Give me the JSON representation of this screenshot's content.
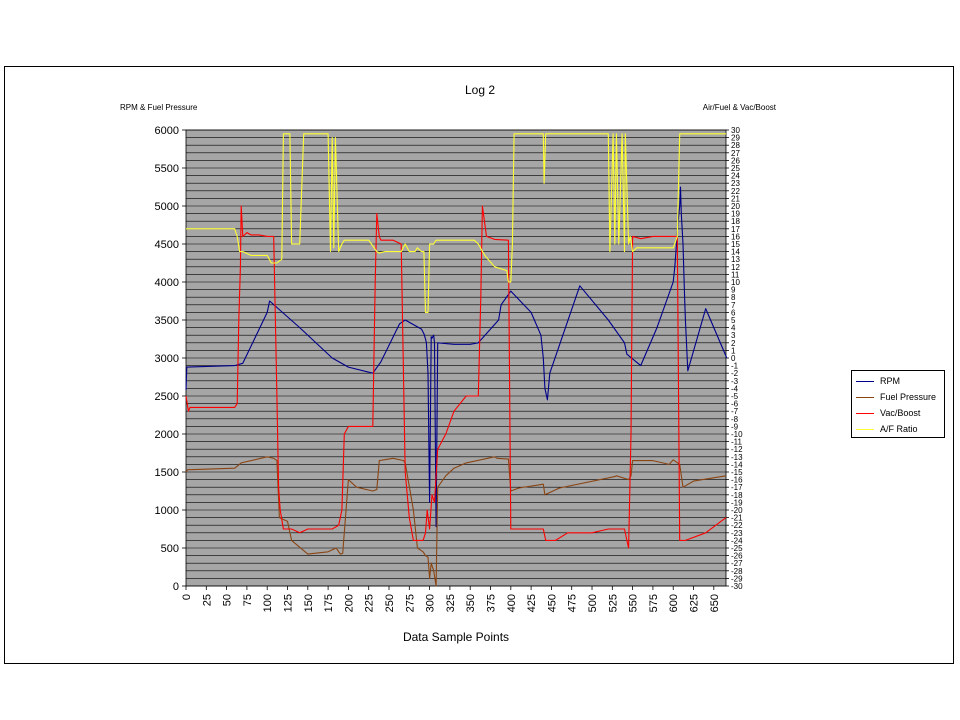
{
  "chart_data": {
    "type": "line",
    "title": "Log 2",
    "xlabel": "Data Sample Points",
    "ylabel_left": "RPM & Fuel Pressure",
    "ylabel_right": "Air/Fuel & Vac/Boost",
    "xlim": [
      0,
      665
    ],
    "ylim_left": [
      0,
      6000
    ],
    "ylim_right": [
      -30,
      30
    ],
    "x_ticks": [
      0,
      25,
      50,
      75,
      100,
      125,
      150,
      175,
      200,
      225,
      250,
      275,
      300,
      325,
      350,
      375,
      400,
      425,
      450,
      475,
      500,
      525,
      550,
      575,
      600,
      625,
      650
    ],
    "y_ticks_left": [
      0,
      500,
      1000,
      1500,
      2000,
      2500,
      3000,
      3500,
      4000,
      4500,
      5000,
      5500,
      6000
    ],
    "y_ticks_right": [
      30,
      29,
      28,
      27,
      26,
      25,
      24,
      23,
      22,
      21,
      20,
      19,
      18,
      17,
      16,
      15,
      14,
      13,
      12,
      11,
      10,
      9,
      8,
      7,
      6,
      5,
      4,
      3,
      2,
      1,
      0,
      -1,
      -2,
      -3,
      -4,
      -5,
      -6,
      -7,
      -8,
      -9,
      -10,
      -11,
      -12,
      -13,
      -14,
      -15,
      -16,
      -17,
      -18,
      -19,
      -20,
      -21,
      -22,
      -23,
      -24,
      -25,
      -26,
      -27,
      -28,
      -29,
      -30
    ],
    "grid": true,
    "legend_position": "right",
    "plot_background": "#a6a6a6",
    "series": [
      {
        "name": "RPM",
        "axis": "left",
        "color": "#00008b",
        "x": [
          0,
          1,
          2,
          60,
          70,
          100,
          103,
          140,
          180,
          200,
          230,
          240,
          263,
          270,
          290,
          293,
          295,
          296,
          298,
          300,
          302,
          303,
          305,
          306,
          308,
          310,
          330,
          350,
          360,
          385,
          388,
          400,
          425,
          437,
          440,
          442,
          445,
          448,
          485,
          520,
          540,
          543,
          560,
          580,
          600,
          602,
          604,
          606,
          608,
          609,
          610,
          612,
          614,
          615,
          618,
          640,
          666
        ],
        "y": [
          2580,
          2880,
          2880,
          2900,
          2930,
          3600,
          3750,
          3400,
          3000,
          2880,
          2800,
          2950,
          3450,
          3500,
          3380,
          3320,
          3250,
          3200,
          2800,
          1100,
          3280,
          3260,
          3300,
          3200,
          780,
          3200,
          3180,
          3180,
          3200,
          3500,
          3700,
          3880,
          3600,
          3300,
          3000,
          2600,
          2450,
          2800,
          3950,
          3500,
          3200,
          3050,
          2900,
          3400,
          4000,
          4200,
          4500,
          4800,
          5000,
          5250,
          4900,
          4500,
          3800,
          3500,
          2830,
          3650,
          3000
        ]
      },
      {
        "name": "Fuel Pressure",
        "axis": "left",
        "color": "#8b4513",
        "x": [
          0,
          2,
          5,
          60,
          68,
          100,
          108,
          112,
          115,
          125,
          130,
          150,
          175,
          185,
          190,
          193,
          200,
          210,
          230,
          235,
          238,
          255,
          268,
          270,
          280,
          285,
          292,
          295,
          298,
          300,
          302,
          305,
          308,
          310,
          320,
          330,
          345,
          380,
          383,
          397,
          400,
          410,
          440,
          442,
          460,
          528,
          530,
          545,
          548,
          550,
          575,
          595,
          600,
          608,
          612,
          625,
          665
        ],
        "y": [
          1500,
          1530,
          1530,
          1550,
          1620,
          1700,
          1680,
          1650,
          900,
          850,
          600,
          420,
          450,
          500,
          420,
          430,
          1400,
          1300,
          1250,
          1270,
          1650,
          1680,
          1650,
          1620,
          1000,
          500,
          450,
          400,
          380,
          100,
          300,
          200,
          0,
          1300,
          1450,
          1550,
          1620,
          1700,
          1680,
          1670,
          1250,
          1290,
          1340,
          1200,
          1290,
          1440,
          1450,
          1400,
          1450,
          1650,
          1650,
          1600,
          1660,
          1600,
          1300,
          1380,
          1450
        ]
      },
      {
        "name": "Vac/Boost",
        "axis": "right",
        "color": "#ff0000",
        "x": [
          0,
          3,
          5,
          60,
          63,
          65,
          67,
          68,
          70,
          75,
          80,
          90,
          100,
          108,
          112,
          114,
          116,
          120,
          130,
          140,
          150,
          180,
          188,
          192,
          195,
          200,
          215,
          225,
          230,
          233,
          235,
          238,
          240,
          255,
          265,
          270,
          275,
          280,
          285,
          292,
          295,
          297,
          300,
          303,
          306,
          310,
          320,
          330,
          345,
          360,
          363,
          365,
          370,
          380,
          397,
          400,
          405,
          420,
          440,
          443,
          455,
          470,
          500,
          520,
          540,
          543,
          545,
          548,
          550,
          560,
          575,
          590,
          605,
          608,
          610,
          615,
          640,
          665
        ],
        "y": [
          -5,
          -7,
          -6.5,
          -6.5,
          -6,
          5,
          12,
          20,
          16,
          16.5,
          16.2,
          16.2,
          16,
          16,
          -5,
          -17,
          -20,
          -22.5,
          -22.5,
          -23,
          -22.5,
          -22.5,
          -22,
          -20,
          -10,
          -9,
          -9,
          -9,
          -9,
          10,
          19,
          16,
          15.5,
          15.5,
          15,
          -15,
          -21,
          -24,
          -24,
          -24,
          -23,
          -20,
          -22.5,
          -18,
          -19,
          -12,
          -10,
          -7,
          -5,
          -5,
          8,
          20,
          16,
          15.6,
          15.5,
          -22.5,
          -22.5,
          -22.5,
          -22.5,
          -24,
          -24,
          -23,
          -23,
          -22.5,
          -22.5,
          -24,
          -25,
          -10,
          16,
          15.7,
          16,
          16,
          16,
          -24,
          -24,
          -24,
          -23,
          -21
        ]
      },
      {
        "name": "A/F Ratio",
        "axis": "right",
        "color": "#ffff33",
        "x": [
          0,
          5,
          60,
          63,
          66,
          70,
          80,
          100,
          105,
          112,
          118,
          120,
          125,
          128,
          130,
          140,
          145,
          150,
          175,
          178,
          180,
          182,
          184,
          188,
          190,
          192,
          195,
          210,
          225,
          235,
          238,
          245,
          255,
          265,
          270,
          275,
          282,
          285,
          290,
          293,
          295,
          298,
          300,
          305,
          308,
          311,
          355,
          360,
          368,
          380,
          395,
          397,
          400,
          402,
          404,
          406,
          408,
          410,
          440,
          441,
          443,
          520,
          522,
          526,
          528,
          530,
          533,
          537,
          540,
          541,
          545,
          547,
          550,
          555,
          600,
          605,
          608,
          612,
          615,
          665
        ],
        "y": [
          17,
          17,
          17,
          16,
          14,
          14,
          13.5,
          13.5,
          12.5,
          12.5,
          13,
          29.5,
          29.5,
          29.5,
          15,
          15,
          29.5,
          29.5,
          29.5,
          14,
          29,
          14.5,
          29,
          14,
          14.5,
          15,
          15.5,
          15.5,
          15.5,
          14,
          13.8,
          14,
          14,
          14,
          15,
          14,
          14,
          14.5,
          14,
          14,
          6,
          6,
          15,
          15,
          15.5,
          15.5,
          15.5,
          15,
          13.5,
          12,
          11.5,
          10,
          10,
          15,
          29.5,
          29.5,
          29.5,
          29.5,
          29.5,
          23,
          29.5,
          29.5,
          14,
          29.5,
          15,
          29.5,
          15,
          29.5,
          14,
          29.5,
          15,
          16,
          14,
          14.5,
          14.5,
          16,
          29.5,
          29.5,
          29.5,
          29.5
        ]
      }
    ]
  }
}
